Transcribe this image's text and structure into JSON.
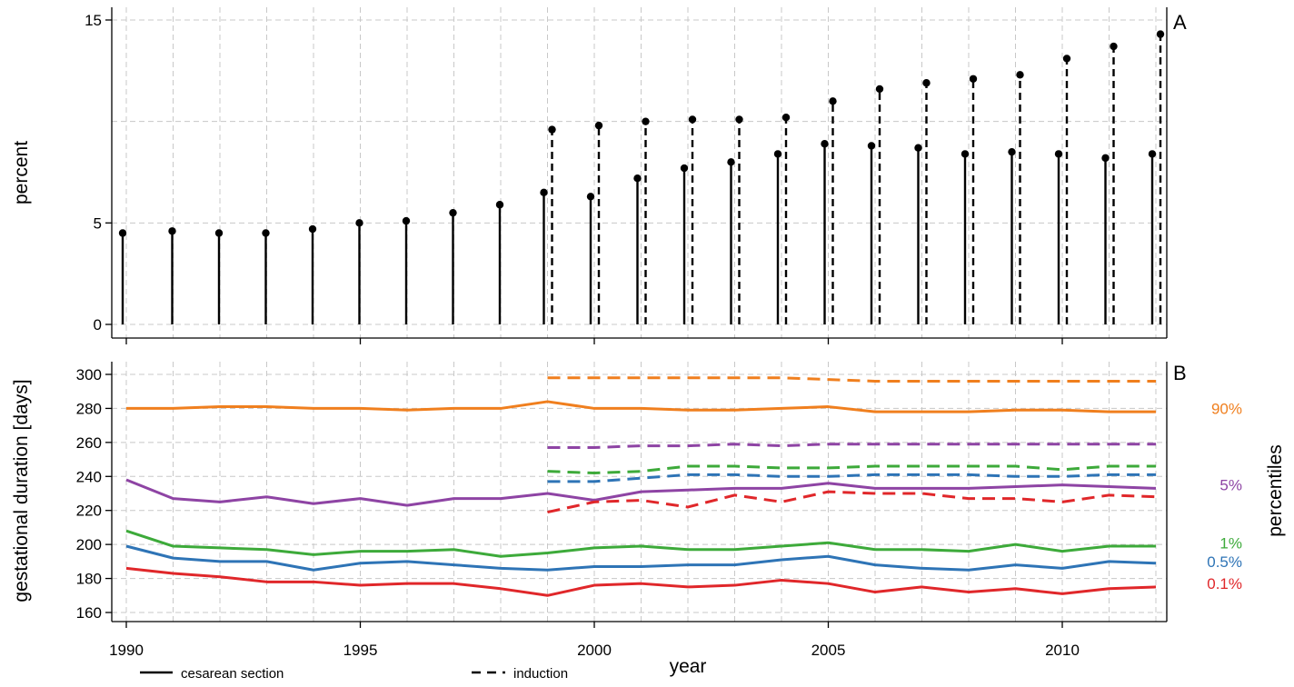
{
  "chart_data": [
    {
      "type": "stem",
      "panel_label": "A",
      "ylabel": "percent",
      "yticks": [
        0,
        5,
        15
      ],
      "ylim": [
        0,
        15
      ],
      "xlim": [
        1989.8,
        2012.3
      ],
      "grid": true,
      "series": [
        {
          "name": "cesarean section",
          "style": "solid",
          "x": [
            1990,
            1991,
            1992,
            1993,
            1994,
            1995,
            1996,
            1997,
            1998,
            1999,
            2000,
            2001,
            2002,
            2003,
            2004,
            2005,
            2006,
            2007,
            2008,
            2009,
            2010,
            2011,
            2012
          ],
          "values": [
            4.5,
            4.6,
            4.5,
            4.5,
            4.7,
            5.0,
            5.1,
            5.5,
            5.9,
            6.5,
            6.3,
            7.2,
            7.7,
            8.0,
            8.4,
            8.9,
            8.8,
            8.7,
            8.4,
            8.5,
            8.4,
            8.2,
            8.4
          ]
        },
        {
          "name": "induction",
          "style": "dashed",
          "x": [
            1999,
            2000,
            2001,
            2002,
            2003,
            2004,
            2005,
            2006,
            2007,
            2008,
            2009,
            2010,
            2011,
            2012
          ],
          "values": [
            9.6,
            9.8,
            10.0,
            10.1,
            10.1,
            10.2,
            11.0,
            11.6,
            11.9,
            12.1,
            12.3,
            13.1,
            13.7,
            14.3
          ]
        }
      ]
    },
    {
      "type": "line",
      "panel_label": "B",
      "ylabel": "gestational duration [days]",
      "ylabel_right": "percentiles",
      "xlabel": "year",
      "ylim": [
        160,
        300
      ],
      "yticks": [
        160,
        180,
        200,
        220,
        240,
        260,
        280,
        300
      ],
      "xticks": [
        1990,
        1995,
        2000,
        2005,
        2010
      ],
      "xlim": [
        1989.8,
        2012.3
      ],
      "grid": true,
      "percentile_labels": [
        {
          "text": "90%",
          "y": 280,
          "color": "#F07F1E"
        },
        {
          "text": "5%",
          "y": 235,
          "color": "#8E44A4"
        },
        {
          "text": "1%",
          "y": 201,
          "color": "#3DAA3A"
        },
        {
          "text": "0.5%",
          "y": 190,
          "color": "#2E74B6"
        },
        {
          "text": "0.1%",
          "y": 177,
          "color": "#E0272A"
        }
      ],
      "series": [
        {
          "percentile": "90%",
          "color": "#F07F1E",
          "style": "solid",
          "x": [
            1990,
            1991,
            1992,
            1993,
            1994,
            1995,
            1996,
            1997,
            1998,
            1999,
            2000,
            2001,
            2002,
            2003,
            2004,
            2005,
            2006,
            2007,
            2008,
            2009,
            2010,
            2011,
            2012
          ],
          "values": [
            280,
            280,
            281,
            281,
            280,
            280,
            279,
            280,
            280,
            284,
            280,
            280,
            279,
            279,
            280,
            281,
            278,
            278,
            278,
            279,
            279,
            278,
            278
          ]
        },
        {
          "percentile": "5%",
          "color": "#8E44A4",
          "style": "solid",
          "x": [
            1990,
            1991,
            1992,
            1993,
            1994,
            1995,
            1996,
            1997,
            1998,
            1999,
            2000,
            2001,
            2002,
            2003,
            2004,
            2005,
            2006,
            2007,
            2008,
            2009,
            2010,
            2011,
            2012
          ],
          "values": [
            238,
            227,
            225,
            228,
            224,
            227,
            223,
            227,
            227,
            230,
            226,
            231,
            232,
            233,
            233,
            236,
            233,
            233,
            233,
            234,
            235,
            234,
            233
          ]
        },
        {
          "percentile": "1%",
          "color": "#3DAA3A",
          "style": "solid",
          "x": [
            1990,
            1991,
            1992,
            1993,
            1994,
            1995,
            1996,
            1997,
            1998,
            1999,
            2000,
            2001,
            2002,
            2003,
            2004,
            2005,
            2006,
            2007,
            2008,
            2009,
            2010,
            2011,
            2012
          ],
          "values": [
            208,
            199,
            198,
            197,
            194,
            196,
            196,
            197,
            193,
            195,
            198,
            199,
            197,
            197,
            199,
            201,
            197,
            197,
            196,
            200,
            196,
            199,
            199
          ]
        },
        {
          "percentile": "0.5%",
          "color": "#2E74B6",
          "style": "solid",
          "x": [
            1990,
            1991,
            1992,
            1993,
            1994,
            1995,
            1996,
            1997,
            1998,
            1999,
            2000,
            2001,
            2002,
            2003,
            2004,
            2005,
            2006,
            2007,
            2008,
            2009,
            2010,
            2011,
            2012
          ],
          "values": [
            199,
            192,
            190,
            190,
            185,
            189,
            190,
            188,
            186,
            185,
            187,
            187,
            188,
            188,
            191,
            193,
            188,
            186,
            185,
            188,
            186,
            190,
            189
          ]
        },
        {
          "percentile": "0.1%",
          "color": "#E0272A",
          "style": "solid",
          "x": [
            1990,
            1991,
            1992,
            1993,
            1994,
            1995,
            1996,
            1997,
            1998,
            1999,
            2000,
            2001,
            2002,
            2003,
            2004,
            2005,
            2006,
            2007,
            2008,
            2009,
            2010,
            2011,
            2012
          ],
          "values": [
            186,
            183,
            181,
            178,
            178,
            176,
            177,
            177,
            174,
            170,
            176,
            177,
            175,
            176,
            179,
            177,
            172,
            175,
            172,
            174,
            171,
            174,
            175
          ]
        },
        {
          "percentile": "90%",
          "color": "#F07F1E",
          "style": "dashed",
          "x": [
            1999,
            2000,
            2001,
            2002,
            2003,
            2004,
            2005,
            2006,
            2007,
            2008,
            2009,
            2010,
            2011,
            2012
          ],
          "values": [
            298,
            298,
            298,
            298,
            298,
            298,
            297,
            296,
            296,
            296,
            296,
            296,
            296,
            296
          ]
        },
        {
          "percentile": "5%",
          "color": "#8E44A4",
          "style": "dashed",
          "x": [
            1999,
            2000,
            2001,
            2002,
            2003,
            2004,
            2005,
            2006,
            2007,
            2008,
            2009,
            2010,
            2011,
            2012
          ],
          "values": [
            257,
            257,
            258,
            258,
            259,
            258,
            259,
            259,
            259,
            259,
            259,
            259,
            259,
            259
          ]
        },
        {
          "percentile": "1%",
          "color": "#3DAA3A",
          "style": "dashed",
          "x": [
            1999,
            2000,
            2001,
            2002,
            2003,
            2004,
            2005,
            2006,
            2007,
            2008,
            2009,
            2010,
            2011,
            2012
          ],
          "values": [
            243,
            242,
            243,
            246,
            246,
            245,
            245,
            246,
            246,
            246,
            246,
            244,
            246,
            246
          ]
        },
        {
          "percentile": "0.5%",
          "color": "#2E74B6",
          "style": "dashed",
          "x": [
            1999,
            2000,
            2001,
            2002,
            2003,
            2004,
            2005,
            2006,
            2007,
            2008,
            2009,
            2010,
            2011,
            2012
          ],
          "values": [
            237,
            237,
            239,
            241,
            241,
            240,
            240,
            241,
            241,
            241,
            240,
            240,
            241,
            241
          ]
        },
        {
          "percentile": "0.1%",
          "color": "#E0272A",
          "style": "dashed",
          "x": [
            1999,
            2000,
            2001,
            2002,
            2003,
            2004,
            2005,
            2006,
            2007,
            2008,
            2009,
            2010,
            2011,
            2012
          ],
          "values": [
            219,
            225,
            226,
            222,
            229,
            225,
            231,
            230,
            230,
            227,
            227,
            225,
            229,
            228
          ]
        }
      ]
    }
  ],
  "legend": {
    "items": [
      {
        "label": "cesarean section",
        "style": "solid"
      },
      {
        "label": "induction",
        "style": "dashed"
      }
    ]
  }
}
